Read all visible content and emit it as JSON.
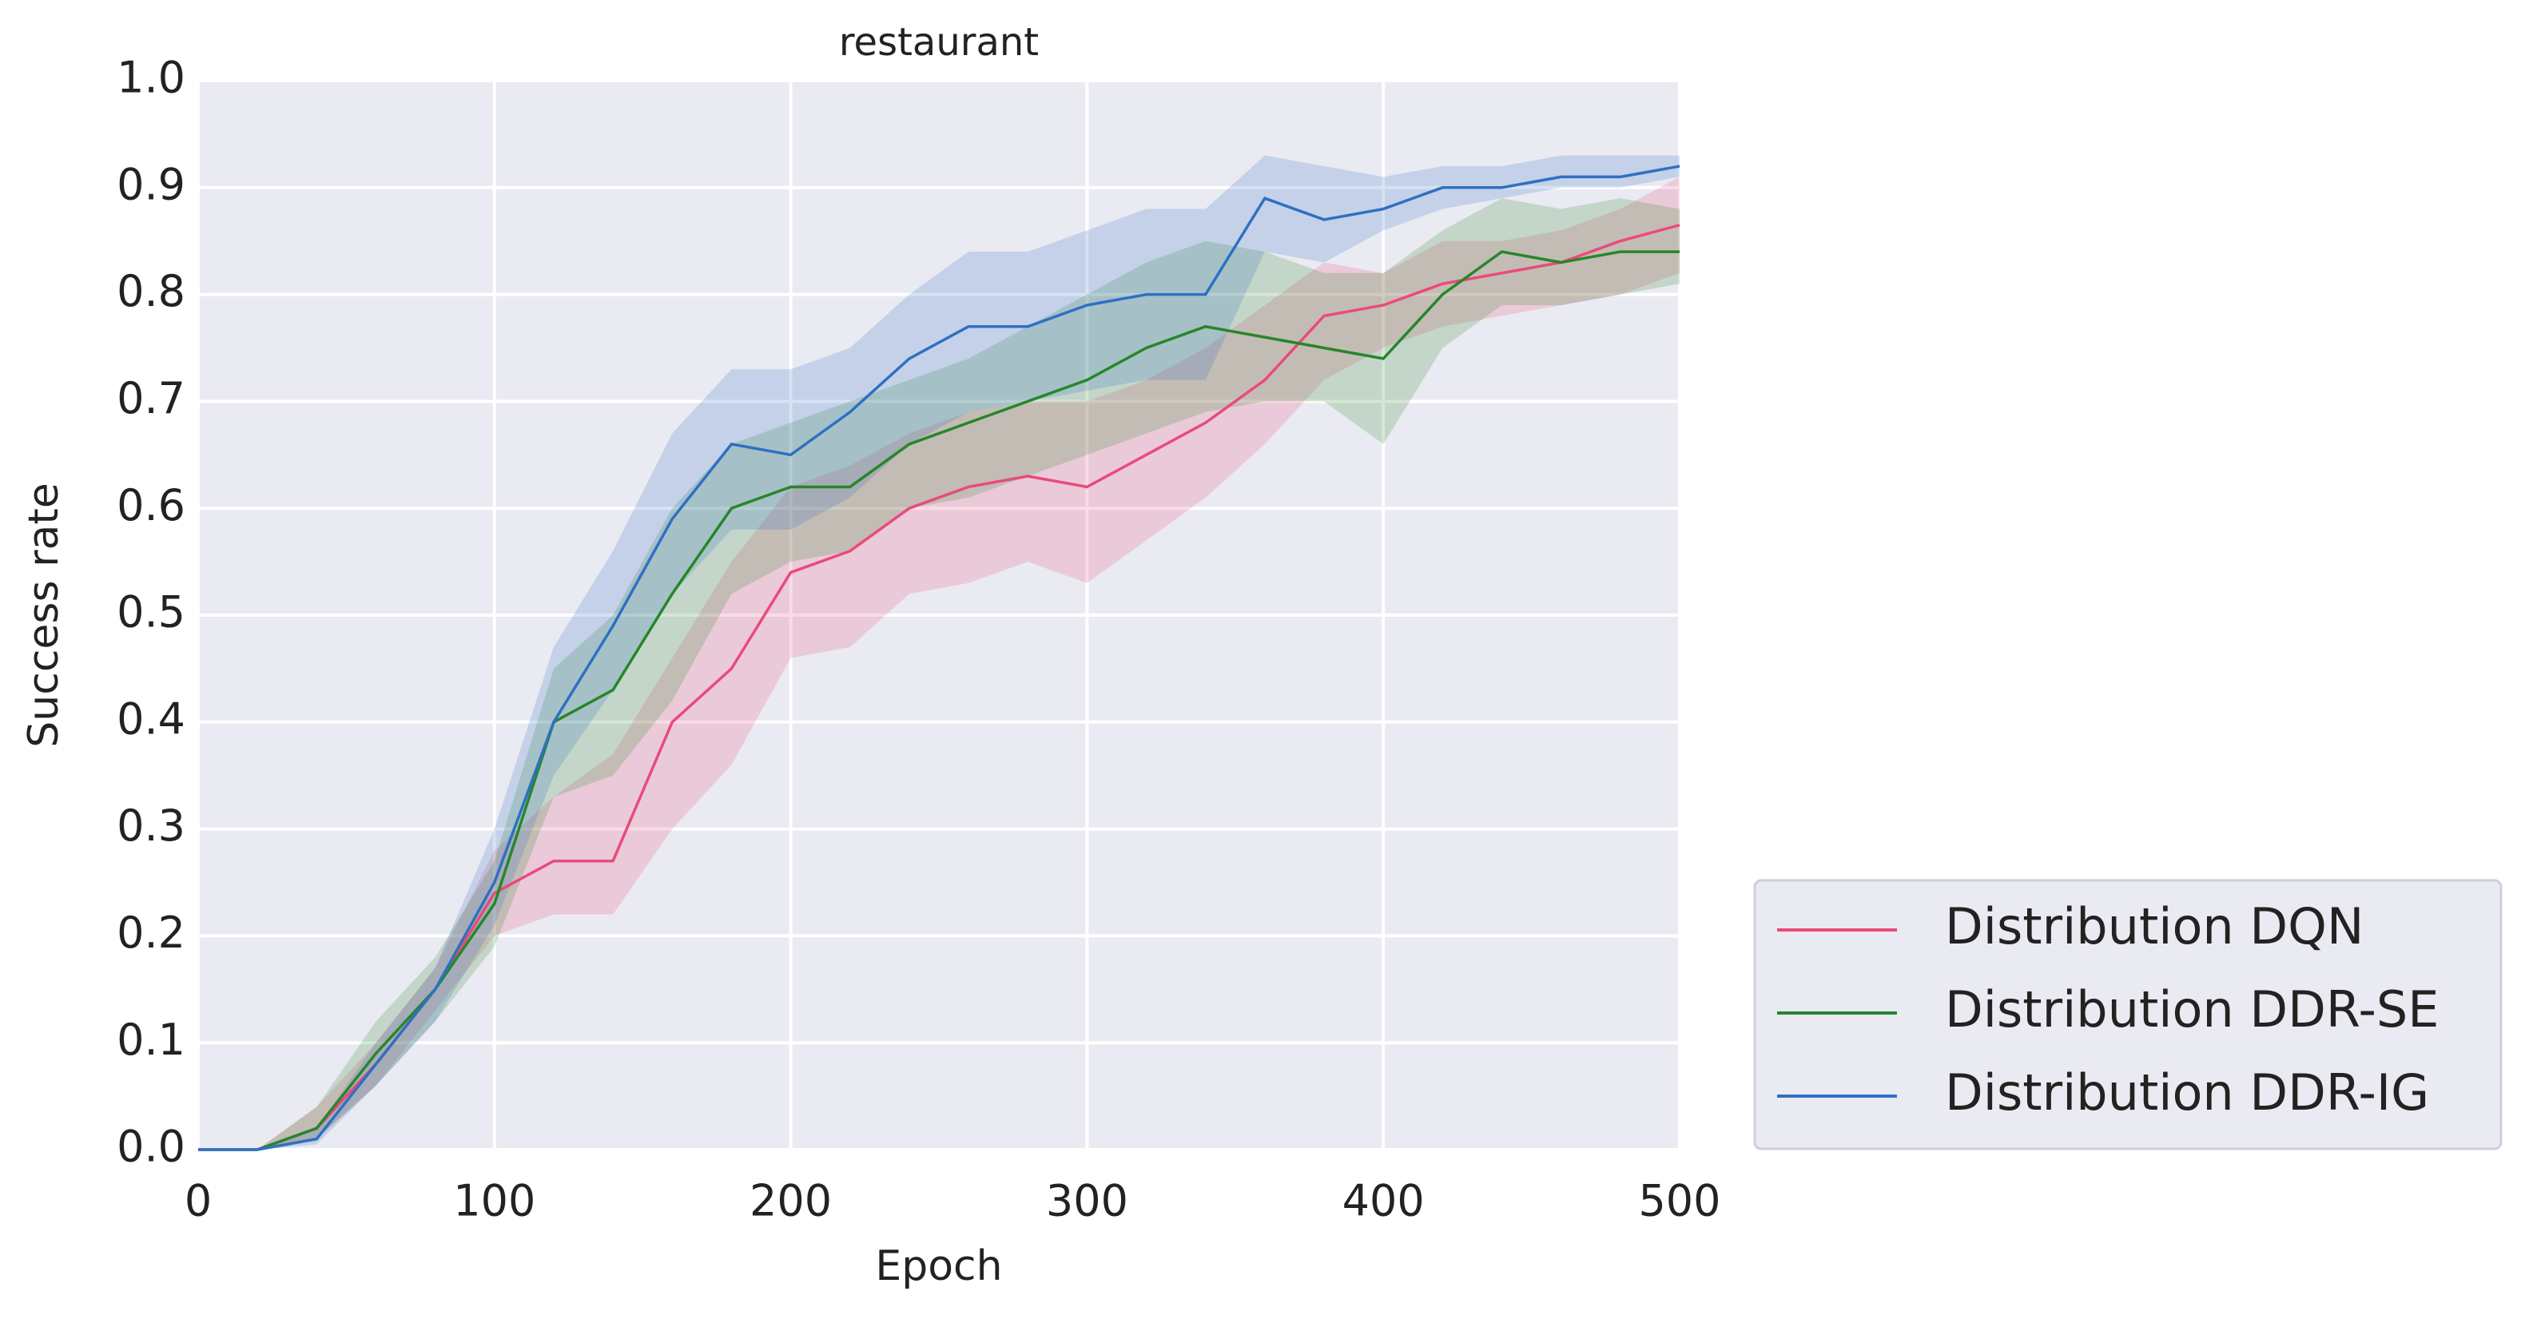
{
  "chart_data": {
    "type": "line",
    "title": "restaurant",
    "x_label": "Epoch",
    "y_label": "Success rate",
    "x": [
      0,
      20,
      40,
      60,
      80,
      100,
      120,
      140,
      160,
      180,
      200,
      220,
      240,
      260,
      280,
      300,
      320,
      340,
      360,
      380,
      400,
      420,
      440,
      460,
      480,
      500
    ],
    "series": [
      {
        "name": "Distribution DQN",
        "color": "#ea4a7a",
        "values": [
          0,
          0,
          0.02,
          0.08,
          0.15,
          0.24,
          0.27,
          0.27,
          0.4,
          0.45,
          0.54,
          0.56,
          0.6,
          0.62,
          0.63,
          0.62,
          0.65,
          0.68,
          0.72,
          0.78,
          0.79,
          0.81,
          0.82,
          0.83,
          0.85,
          0.865
        ],
        "lower": [
          0,
          0,
          0.01,
          0.06,
          0.13,
          0.2,
          0.22,
          0.22,
          0.3,
          0.36,
          0.46,
          0.47,
          0.52,
          0.53,
          0.55,
          0.53,
          0.57,
          0.61,
          0.66,
          0.72,
          0.75,
          0.77,
          0.78,
          0.79,
          0.8,
          0.82
        ],
        "upper": [
          0,
          0,
          0.04,
          0.1,
          0.17,
          0.28,
          0.33,
          0.37,
          0.46,
          0.55,
          0.62,
          0.64,
          0.67,
          0.69,
          0.7,
          0.7,
          0.72,
          0.75,
          0.79,
          0.83,
          0.82,
          0.85,
          0.85,
          0.86,
          0.88,
          0.91
        ]
      },
      {
        "name": "Distribution DDR-SE",
        "color": "#27862a",
        "values": [
          0,
          0,
          0.02,
          0.09,
          0.15,
          0.23,
          0.4,
          0.43,
          0.52,
          0.6,
          0.62,
          0.62,
          0.66,
          0.68,
          0.7,
          0.72,
          0.75,
          0.77,
          0.76,
          0.75,
          0.74,
          0.8,
          0.84,
          0.83,
          0.84,
          0.84
        ],
        "lower": [
          0,
          0,
          0.01,
          0.06,
          0.12,
          0.19,
          0.33,
          0.35,
          0.42,
          0.52,
          0.55,
          0.56,
          0.6,
          0.61,
          0.63,
          0.65,
          0.67,
          0.69,
          0.7,
          0.7,
          0.66,
          0.75,
          0.79,
          0.79,
          0.8,
          0.81
        ],
        "upper": [
          0,
          0,
          0.04,
          0.12,
          0.18,
          0.27,
          0.45,
          0.5,
          0.6,
          0.66,
          0.68,
          0.7,
          0.72,
          0.74,
          0.77,
          0.8,
          0.83,
          0.85,
          0.84,
          0.82,
          0.82,
          0.86,
          0.89,
          0.88,
          0.89,
          0.88
        ]
      },
      {
        "name": "Distribution DDR-IG",
        "color": "#2e70c2",
        "values": [
          0,
          0,
          0.01,
          0.08,
          0.15,
          0.25,
          0.4,
          0.49,
          0.59,
          0.66,
          0.65,
          0.69,
          0.74,
          0.77,
          0.77,
          0.79,
          0.8,
          0.8,
          0.89,
          0.87,
          0.88,
          0.9,
          0.9,
          0.91,
          0.91,
          0.92
        ],
        "lower": [
          0,
          0,
          0.005,
          0.06,
          0.12,
          0.21,
          0.35,
          0.43,
          0.52,
          0.58,
          0.58,
          0.61,
          0.66,
          0.69,
          0.7,
          0.71,
          0.72,
          0.72,
          0.84,
          0.83,
          0.86,
          0.88,
          0.89,
          0.9,
          0.9,
          0.91
        ],
        "upper": [
          0,
          0,
          0.02,
          0.1,
          0.17,
          0.3,
          0.47,
          0.56,
          0.67,
          0.73,
          0.73,
          0.75,
          0.8,
          0.84,
          0.84,
          0.86,
          0.88,
          0.88,
          0.93,
          0.92,
          0.91,
          0.92,
          0.92,
          0.93,
          0.93,
          0.93
        ]
      }
    ],
    "xlim": [
      0,
      500
    ],
    "xticks": [
      0,
      100,
      200,
      300,
      400,
      500
    ],
    "ylim": [
      0,
      1
    ],
    "yticks": [
      {
        "value": 0,
        "label": "0.0"
      },
      0.1,
      0.2,
      0.3,
      0.4,
      0.5,
      0.6,
      0.7,
      0.8,
      0.9,
      {
        "value": 1,
        "label": "1.0"
      }
    ],
    "grid": true,
    "legend": "outside-lower-right"
  }
}
